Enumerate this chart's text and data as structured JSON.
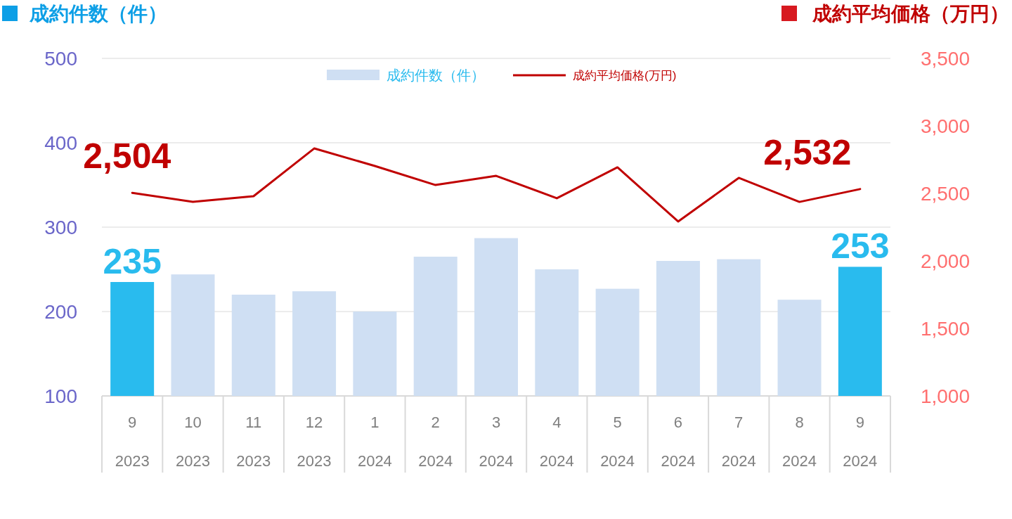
{
  "chart_data": {
    "type": "bar",
    "categories": [
      "9\n2023",
      "10\n2023",
      "11\n2023",
      "12\n2023",
      "1\n2024",
      "2\n2024",
      "3\n2024",
      "4\n2024",
      "5\n2024",
      "6\n2024",
      "7\n2024",
      "8\n2024",
      "9\n2024"
    ],
    "ylabel": "成約件数（件）",
    "y2label": "成約平均価格（万円）",
    "series": [
      {
        "name": "成約件数（件）",
        "color": "#cfdff3",
        "colors": [
          "#29bbee",
          "#cfdff3",
          "#cfdff3",
          "#cfdff3",
          "#cfdff3",
          "#cfdff3",
          "#cfdff3",
          "#cfdff3",
          "#cfdff3",
          "#cfdff3",
          "#cfdff3",
          "#cfdff3",
          "#29bbee"
        ],
        "values": [
          235,
          244,
          220,
          224,
          200,
          265,
          287,
          250,
          227,
          260,
          262,
          214,
          253
        ],
        "value_labels": [
          "235",
          null,
          null,
          null,
          null,
          null,
          null,
          null,
          null,
          null,
          null,
          null,
          "253"
        ]
      },
      {
        "name": "成約平均価格(万円)",
        "type": "line",
        "axis": "y2",
        "color": "#c00000",
        "values": [
          2504,
          2437,
          2479,
          2833,
          2703,
          2562,
          2630,
          2464,
          2693,
          2292,
          2615,
          2437,
          2532
        ],
        "value_labels": [
          "2,504",
          null,
          null,
          null,
          null,
          null,
          null,
          null,
          null,
          null,
          null,
          null,
          "2,532"
        ]
      }
    ],
    "ylim": [
      100,
      500
    ],
    "yticks": [
      100,
      200,
      300,
      400,
      500
    ],
    "y2lim": [
      1000,
      3500
    ],
    "y2ticks": [
      {
        "value": 1000,
        "label": "1,000"
      },
      {
        "value": 1500,
        "label": "1,500"
      },
      {
        "value": 2000,
        "label": "2,000"
      },
      {
        "value": 2500,
        "label": "2,500"
      },
      {
        "value": 3000,
        "label": "3,000"
      },
      {
        "value": 3500,
        "label": "3,500"
      }
    ],
    "grid": "y",
    "legend": "top",
    "line_style": "solid",
    "marker": "none"
  }
}
